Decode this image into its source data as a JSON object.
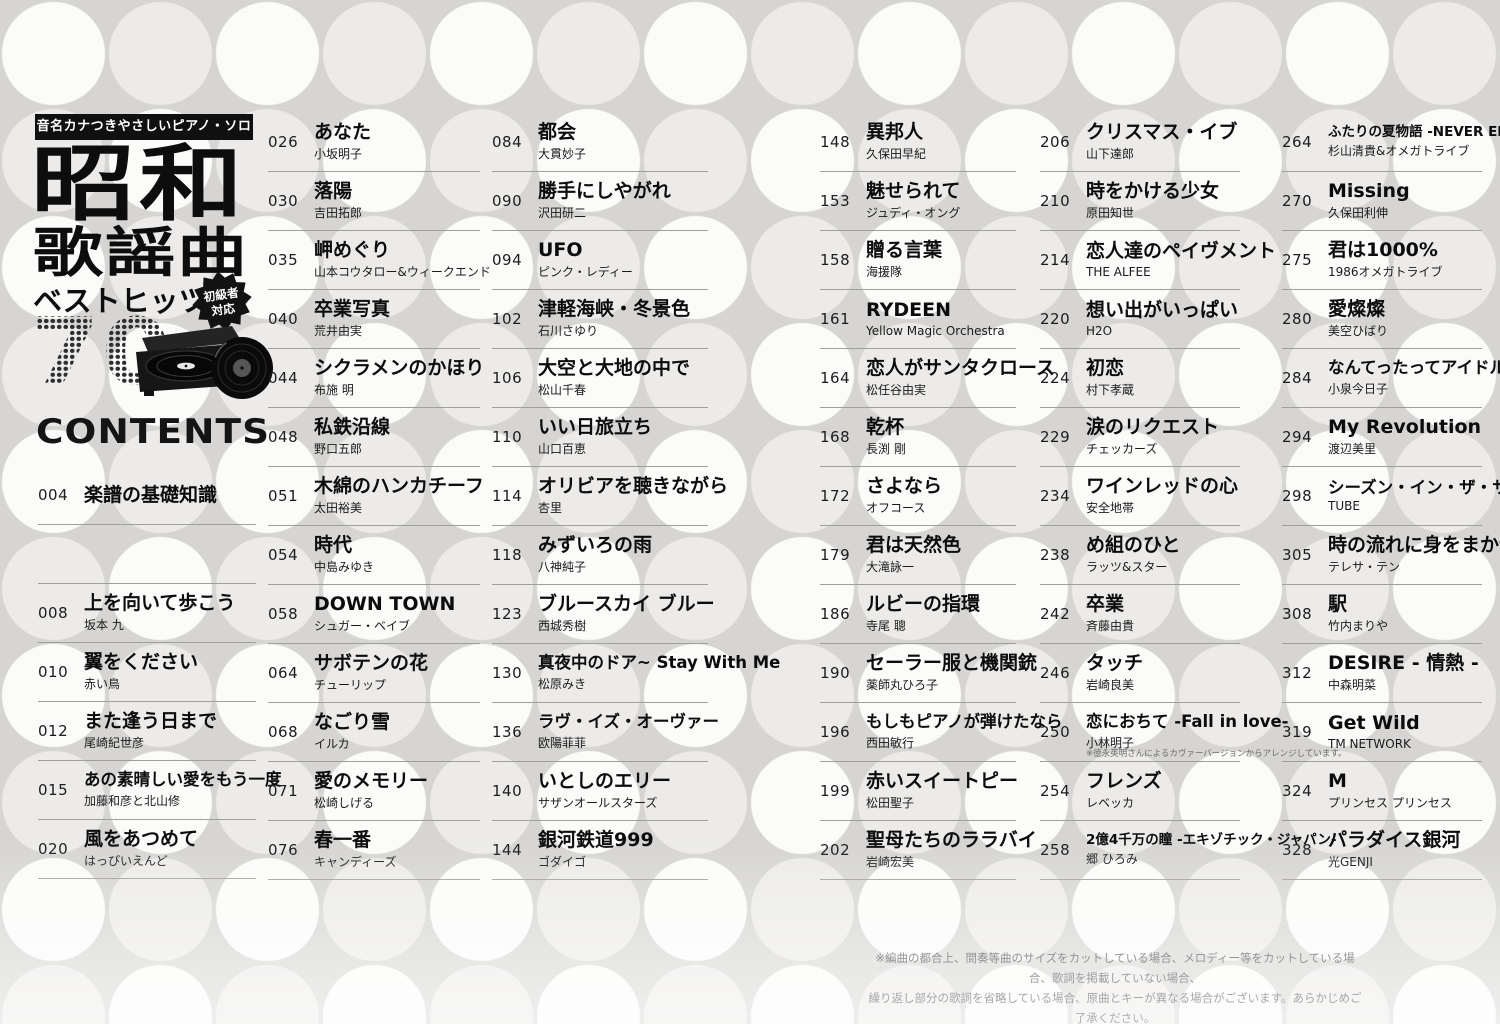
{
  "logo": {
    "tagline": "音名カナつきやさしいピアノ・ソロ",
    "title_line1": "昭和",
    "title_line2": "歌謡曲",
    "subtitle": "ベストヒッツ",
    "count": "70",
    "badge_line1": "初級者",
    "badge_line2": "対応",
    "accent_color": "#101010"
  },
  "contents_heading": "CONTENTS",
  "columns": [
    {
      "entries": [
        {
          "page": "004",
          "title": "楽譜の基礎知識",
          "artist": ""
        },
        {
          "spacer": true
        },
        {
          "page": "008",
          "title": "上を向いて歩こう",
          "artist": "坂本 九"
        },
        {
          "page": "010",
          "title": "翼をください",
          "artist": "赤い鳥"
        },
        {
          "page": "012",
          "title": "また逢う日まで",
          "artist": "尾崎紀世彦"
        },
        {
          "page": "015",
          "title": "あの素晴しい愛をもう一度",
          "artist": "加藤和彦と北山修"
        },
        {
          "page": "020",
          "title": "風をあつめて",
          "artist": "はっぴいえんど"
        }
      ]
    },
    {
      "entries": [
        {
          "page": "026",
          "title": "あなた",
          "artist": "小坂明子"
        },
        {
          "page": "030",
          "title": "落陽",
          "artist": "吉田拓郎"
        },
        {
          "page": "035",
          "title": "岬めぐり",
          "artist": "山本コウタロー&ウィークエンド"
        },
        {
          "page": "040",
          "title": "卒業写真",
          "artist": "荒井由実"
        },
        {
          "page": "044",
          "title": "シクラメンのかほり",
          "artist": "布施 明"
        },
        {
          "page": "048",
          "title": "私鉄沿線",
          "artist": "野口五郎"
        },
        {
          "page": "051",
          "title": "木綿のハンカチーフ",
          "artist": "太田裕美"
        },
        {
          "page": "054",
          "title": "時代",
          "artist": "中島みゆき"
        },
        {
          "page": "058",
          "title": "DOWN TOWN",
          "artist": "シュガー・ベイブ"
        },
        {
          "page": "064",
          "title": "サボテンの花",
          "artist": "チューリップ"
        },
        {
          "page": "068",
          "title": "なごり雪",
          "artist": "イルカ"
        },
        {
          "page": "071",
          "title": "愛のメモリー",
          "artist": "松崎しげる"
        },
        {
          "page": "076",
          "title": "春一番",
          "artist": "キャンディーズ"
        }
      ]
    },
    {
      "entries": [
        {
          "page": "084",
          "title": "都会",
          "artist": "大貫妙子"
        },
        {
          "page": "090",
          "title": "勝手にしやがれ",
          "artist": "沢田研二"
        },
        {
          "page": "094",
          "title": "UFO",
          "artist": "ピンク・レディー"
        },
        {
          "page": "102",
          "title": "津軽海峡・冬景色",
          "artist": "石川さゆり"
        },
        {
          "page": "106",
          "title": "大空と大地の中で",
          "artist": "松山千春"
        },
        {
          "page": "110",
          "title": "いい日旅立ち",
          "artist": "山口百恵"
        },
        {
          "page": "114",
          "title": "オリビアを聴きながら",
          "artist": "杏里"
        },
        {
          "page": "118",
          "title": "みずいろの雨",
          "artist": "八神純子"
        },
        {
          "page": "123",
          "title": "ブルースカイ ブルー",
          "artist": "西城秀樹"
        },
        {
          "page": "130",
          "title": "真夜中のドア~ Stay With Me",
          "artist": "松原みき"
        },
        {
          "page": "136",
          "title": "ラヴ・イズ・オーヴァー",
          "artist": "欧陽菲菲"
        },
        {
          "page": "140",
          "title": "いとしのエリー",
          "artist": "サザンオールスターズ"
        },
        {
          "page": "144",
          "title": "銀河鉄道999",
          "artist": "ゴダイゴ"
        }
      ]
    },
    {
      "entries": [
        {
          "page": "148",
          "title": "異邦人",
          "artist": "久保田早紀"
        },
        {
          "page": "153",
          "title": "魅せられて",
          "artist": "ジュディ・オング"
        },
        {
          "page": "158",
          "title": "贈る言葉",
          "artist": "海援隊"
        },
        {
          "page": "161",
          "title": "RYDEEN",
          "artist": "Yellow Magic Orchestra"
        },
        {
          "page": "164",
          "title": "恋人がサンタクロース",
          "artist": "松任谷由実"
        },
        {
          "page": "168",
          "title": "乾杯",
          "artist": "長渕 剛"
        },
        {
          "page": "172",
          "title": "さよなら",
          "artist": "オフコース"
        },
        {
          "page": "179",
          "title": "君は天然色",
          "artist": "大滝詠一"
        },
        {
          "page": "186",
          "title": "ルビーの指環",
          "artist": "寺尾 聰"
        },
        {
          "page": "190",
          "title": "セーラー服と機関銃",
          "artist": "薬師丸ひろ子"
        },
        {
          "page": "196",
          "title": "もしもピアノが弾けたなら",
          "artist": "西田敏行"
        },
        {
          "page": "199",
          "title": "赤いスイートピー",
          "artist": "松田聖子"
        },
        {
          "page": "202",
          "title": "聖母たちのララバイ",
          "artist": "岩崎宏美"
        }
      ]
    },
    {
      "entries": [
        {
          "page": "206",
          "title": "クリスマス・イブ",
          "artist": "山下達郎"
        },
        {
          "page": "210",
          "title": "時をかける少女",
          "artist": "原田知世"
        },
        {
          "page": "214",
          "title": "恋人達のペイヴメント",
          "artist": "THE ALFEE"
        },
        {
          "page": "220",
          "title": "想い出がいっぱい",
          "artist": "H2O"
        },
        {
          "page": "224",
          "title": "初恋",
          "artist": "村下孝蔵"
        },
        {
          "page": "229",
          "title": "涙のリクエスト",
          "artist": "チェッカーズ"
        },
        {
          "page": "234",
          "title": "ワインレッドの心",
          "artist": "安全地帯"
        },
        {
          "page": "238",
          "title": "め組のひと",
          "artist": "ラッツ&スター"
        },
        {
          "page": "242",
          "title": "卒業",
          "artist": "斉藤由貴"
        },
        {
          "page": "246",
          "title": "タッチ",
          "artist": "岩崎良美"
        },
        {
          "page": "250",
          "title": "恋におちて -Fall in love-",
          "artist": "小林明子",
          "note": "※徳永英明さんによるカヴァーバージョンからアレンジしています。"
        },
        {
          "page": "254",
          "title": "フレンズ",
          "artist": "レベッカ"
        },
        {
          "page": "258",
          "title": "2億4千万の瞳 -エキゾチック・ジャパン-",
          "artist": "郷 ひろみ"
        }
      ]
    },
    {
      "entries": [
        {
          "page": "264",
          "title": "ふたりの夏物語 -NEVER ENDING SUMMER-",
          "artist": "杉山清貴&オメガトライブ"
        },
        {
          "page": "270",
          "title": "Missing",
          "artist": "久保田利伸"
        },
        {
          "page": "275",
          "title": "君は1000%",
          "artist": "1986オメガトライブ"
        },
        {
          "page": "280",
          "title": "愛燦燦",
          "artist": "美空ひばり"
        },
        {
          "page": "284",
          "title": "なんてったってアイドル",
          "artist": "小泉今日子"
        },
        {
          "page": "294",
          "title": "My Revolution",
          "artist": "渡辺美里"
        },
        {
          "page": "298",
          "title": "シーズン・イン・ザ・サン",
          "artist": "TUBE"
        },
        {
          "page": "305",
          "title": "時の流れに身をまかせ",
          "artist": "テレサ・テン"
        },
        {
          "page": "308",
          "title": "駅",
          "artist": "竹内まりや"
        },
        {
          "page": "312",
          "title": "DESIRE - 情熱 -",
          "artist": "中森明菜"
        },
        {
          "page": "319",
          "title": "Get Wild",
          "artist": "TM NETWORK"
        },
        {
          "page": "324",
          "title": "M",
          "artist": "プリンセス プリンセス"
        },
        {
          "page": "328",
          "title": "パラダイス銀河",
          "artist": "光GENJI"
        }
      ]
    }
  ],
  "footer": {
    "line1": "※編曲の都合上、間奏等曲のサイズをカットしている場合、メロディー等をカットしている場合、歌詞を掲載していない場合、",
    "line2": "繰り返し部分の歌詞を省略している場合、原曲とキーが異なる場合がございます。あらかじめご了承ください。"
  }
}
